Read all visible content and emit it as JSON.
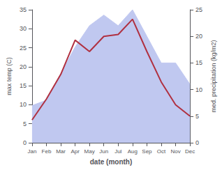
{
  "chart_data": {
    "type": "line",
    "categories": [
      "Jan",
      "Feb",
      "Mar",
      "Apr",
      "May",
      "Jun",
      "Jul",
      "Aug",
      "Sep",
      "Oct",
      "Nov",
      "Dec"
    ],
    "xlabel": "date (month)",
    "ylabel": "max temp (C)",
    "y2label": "med. precipitation (kg/m2)",
    "series": [
      {
        "type": "area",
        "axis": "y2",
        "color": "#c0c8f0",
        "values": [
          7,
          8,
          13,
          18,
          22,
          24,
          22,
          25,
          20,
          15,
          15,
          11
        ]
      },
      {
        "type": "line",
        "color": "#b03040",
        "values": [
          6.0,
          11.5,
          18.0,
          27.0,
          24.0,
          28.0,
          28.5,
          32.5,
          24.0,
          16.0,
          10.0,
          7.0
        ]
      }
    ],
    "ylim": [
      0,
      35
    ],
    "yticks": [
      0,
      5,
      10,
      15,
      20,
      25,
      30,
      35
    ],
    "y2lim": [
      0,
      25
    ],
    "y2ticks": [
      0,
      5,
      10,
      15,
      20,
      25
    ],
    "grid": false
  }
}
